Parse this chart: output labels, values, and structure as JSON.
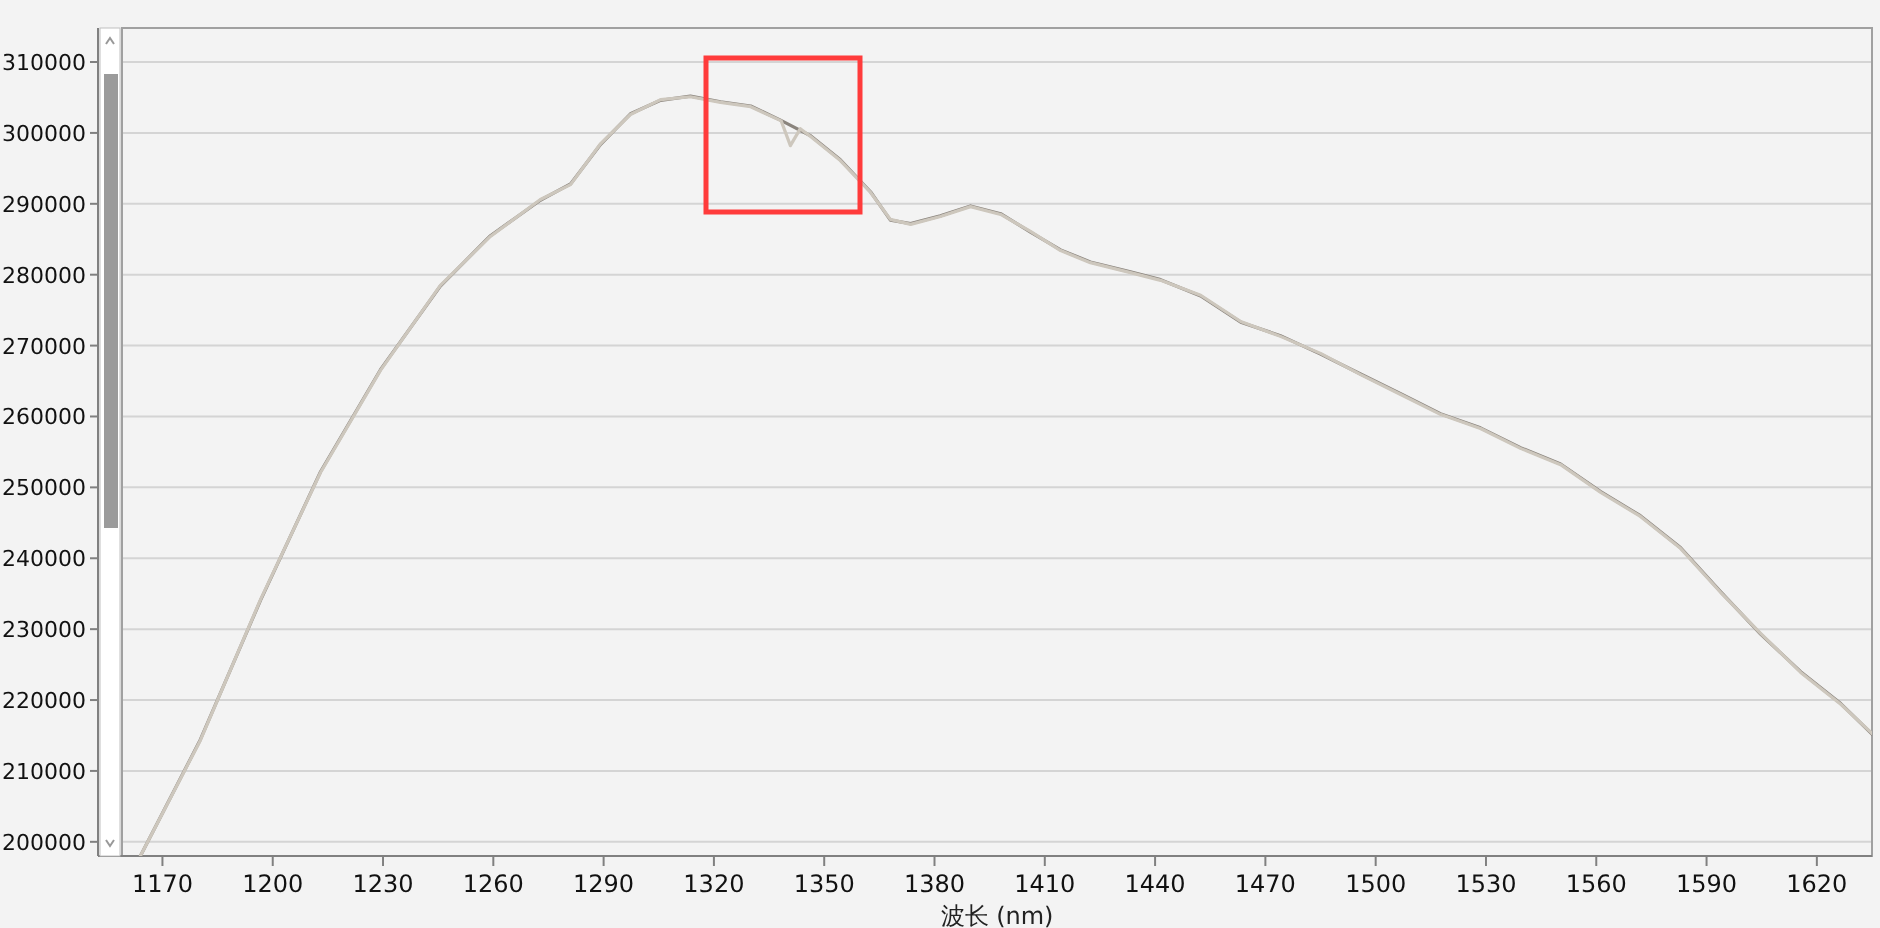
{
  "chart_data": {
    "type": "line",
    "xlabel": "波长 (nm)",
    "xlim": [
      1159,
      1635
    ],
    "ylim": [
      198000,
      314800
    ],
    "xticks": [
      1170,
      1200,
      1230,
      1260,
      1290,
      1320,
      1350,
      1380,
      1410,
      1440,
      1470,
      1500,
      1530,
      1560,
      1590,
      1620
    ],
    "yticks": [
      200000,
      210000,
      220000,
      230000,
      240000,
      250000,
      260000,
      270000,
      280000,
      290000,
      300000,
      310000
    ],
    "grid": "y",
    "marker": "none",
    "line_style": "solid",
    "series": [
      {
        "color": "#8a847d",
        "x": [
          1164,
          1180.3,
          1196.7,
          1213,
          1229.3,
          1245.6,
          1259.2,
          1272.8,
          1281,
          1289.2,
          1297.3,
          1305.5,
          1313.6,
          1321.8,
          1330,
          1338.1,
          1346.3,
          1354.4,
          1362.6,
          1368,
          1373.5,
          1381.6,
          1389.8,
          1398,
          1406.1,
          1414.3,
          1422.4,
          1433.3,
          1441.5,
          1452.4,
          1463.3,
          1474.1,
          1485,
          1495.9,
          1506.8,
          1517.6,
          1528.5,
          1539.4,
          1550.3,
          1561.2,
          1572,
          1582.9,
          1593.8,
          1604.7,
          1615.6,
          1626.5,
          1635
        ],
        "values": [
          198000,
          214400,
          234100,
          252200,
          266600,
          278400,
          285500,
          290500,
          292800,
          298400,
          302700,
          304600,
          305200,
          304400,
          303800,
          301800,
          299600,
          296200,
          291700,
          287700,
          287200,
          288300,
          289700,
          288600,
          286000,
          283500,
          281800,
          280400,
          279300,
          277000,
          273300,
          271400,
          268800,
          266000,
          263200,
          260400,
          258400,
          255600,
          253300,
          249400,
          246000,
          241500,
          235300,
          229300,
          224000,
          219500,
          215200
        ]
      },
      {
        "color": "#cdc7bd",
        "x": [
          1164,
          1180.3,
          1196.7,
          1213,
          1229.3,
          1245.6,
          1259.2,
          1272.8,
          1281,
          1289.2,
          1297.3,
          1305.5,
          1313.6,
          1321.8,
          1330,
          1338.3,
          1340.8,
          1343.5,
          1346.3,
          1354.4,
          1362.6,
          1368,
          1373.5,
          1381.6,
          1389.8,
          1398,
          1406.1,
          1414.3,
          1422.4,
          1433.3,
          1441.5,
          1452.4,
          1463.3,
          1474.1,
          1485,
          1495.9,
          1506.8,
          1517.6,
          1528.5,
          1539.4,
          1550.3,
          1561.2,
          1572,
          1582.9,
          1593.8,
          1604.7,
          1615.6,
          1626.5,
          1635
        ],
        "values": [
          198000,
          214300,
          234200,
          252100,
          266500,
          278500,
          285400,
          290600,
          292700,
          298500,
          302600,
          304700,
          305100,
          304300,
          303700,
          301700,
          298200,
          300600,
          299500,
          296100,
          291600,
          287800,
          287100,
          288200,
          289600,
          288500,
          286100,
          283400,
          281700,
          280300,
          279200,
          277100,
          273400,
          271300,
          268900,
          265900,
          263100,
          260300,
          258300,
          255500,
          253200,
          249300,
          245900,
          241400,
          235200,
          229400,
          223900,
          219400,
          215300
        ]
      }
    ]
  }
}
